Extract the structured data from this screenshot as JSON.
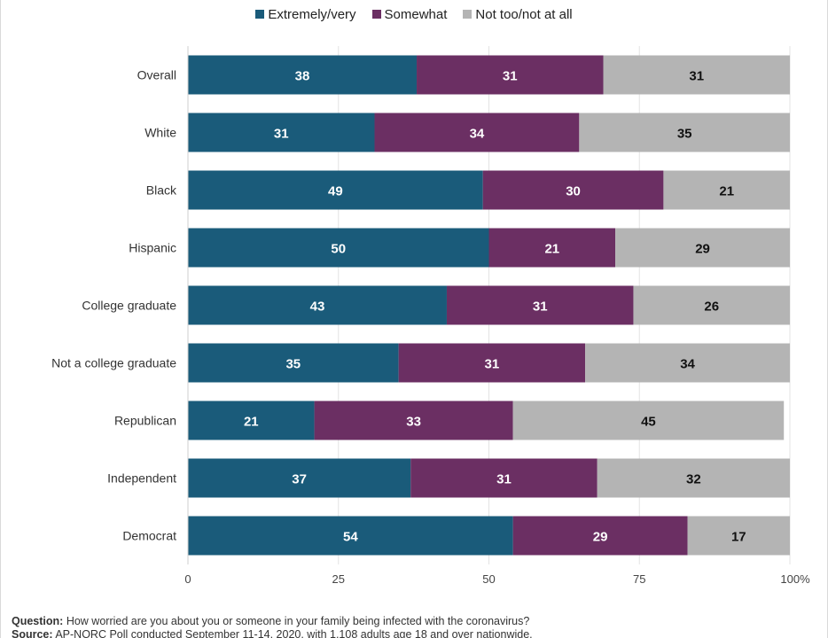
{
  "legend": [
    {
      "label": "Extremely/very",
      "color": "#1a5b7a"
    },
    {
      "label": "Somewhat",
      "color": "#6b2f63"
    },
    {
      "label": "Not too/not at all",
      "color": "#b4b4b4"
    }
  ],
  "chart_data": {
    "type": "bar",
    "orientation": "horizontal",
    "stacked": true,
    "categories": [
      "Overall",
      "White",
      "Black",
      "Hispanic",
      "College graduate",
      "Not a college graduate",
      "Republican",
      "Independent",
      "Democrat"
    ],
    "series": [
      {
        "name": "Extremely/very",
        "color": "#1a5b7a",
        "values": [
          38,
          31,
          49,
          50,
          43,
          35,
          21,
          37,
          54
        ]
      },
      {
        "name": "Somewhat",
        "color": "#6b2f63",
        "values": [
          31,
          34,
          30,
          21,
          31,
          31,
          33,
          31,
          29
        ]
      },
      {
        "name": "Not too/not at all",
        "color": "#b4b4b4",
        "values": [
          31,
          35,
          21,
          29,
          26,
          34,
          45,
          32,
          17
        ]
      }
    ],
    "xlim": [
      0,
      100
    ],
    "xticks": [
      "0",
      "25",
      "50",
      "75",
      "100%"
    ],
    "xtick_values": [
      0,
      25,
      50,
      75,
      100
    ],
    "grid": true,
    "legend_position": "top"
  },
  "footnote": {
    "question_label": "Question:",
    "question_text": "How worried are you about you or someone in your family being infected with the coronavirus?",
    "source_label": "Source:",
    "source_text": "AP-NORC Poll conducted September 11-14, 2020, with 1,108 adults age 18 and over nationwide."
  }
}
